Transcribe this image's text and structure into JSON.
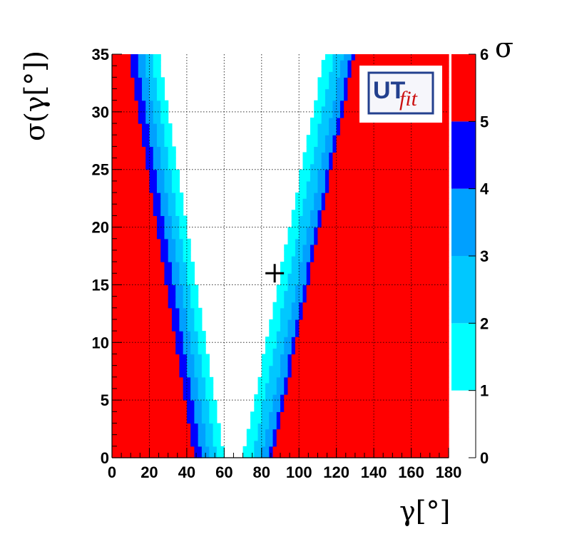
{
  "chart_data": {
    "type": "heatmap",
    "title": "",
    "xlabel": "γ[°]",
    "ylabel": "σ(γ[°])",
    "xlim": [
      0,
      180
    ],
    "ylim": [
      0,
      35
    ],
    "x_ticks": [
      0,
      20,
      40,
      60,
      80,
      100,
      120,
      140,
      160,
      180
    ],
    "y_ticks": [
      0,
      5,
      10,
      15,
      20,
      25,
      30,
      35
    ],
    "grid": true,
    "colorbar": {
      "title": "σ",
      "ticks": [
        0,
        1,
        2,
        3,
        4,
        5,
        6
      ],
      "bands": [
        {
          "from": 0,
          "to": 1,
          "color": "#ffffff"
        },
        {
          "from": 1,
          "to": 2,
          "color": "#00ffff"
        },
        {
          "from": 2,
          "to": 3,
          "color": "#00c8ff"
        },
        {
          "from": 3,
          "to": 4,
          "color": "#00a0ff"
        },
        {
          "from": 4,
          "to": 5,
          "color": "#0000ff"
        },
        {
          "from": 5,
          "to": 6,
          "color": "#ff0000"
        }
      ]
    },
    "contour_model": {
      "center_x": 65,
      "left_slope_x_per_unit_y": 1.0,
      "right_slope_x_per_unit_y": 1.25,
      "left_boundaries_at_y0": [
        60,
        56,
        52,
        48,
        44
      ],
      "right_boundaries_at_y0": [
        70,
        75,
        80,
        84,
        86
      ]
    },
    "marker": {
      "symbol": "+",
      "x": 87,
      "y": 16
    },
    "logo": {
      "text_main": "UT",
      "text_sub": "fit"
    }
  }
}
